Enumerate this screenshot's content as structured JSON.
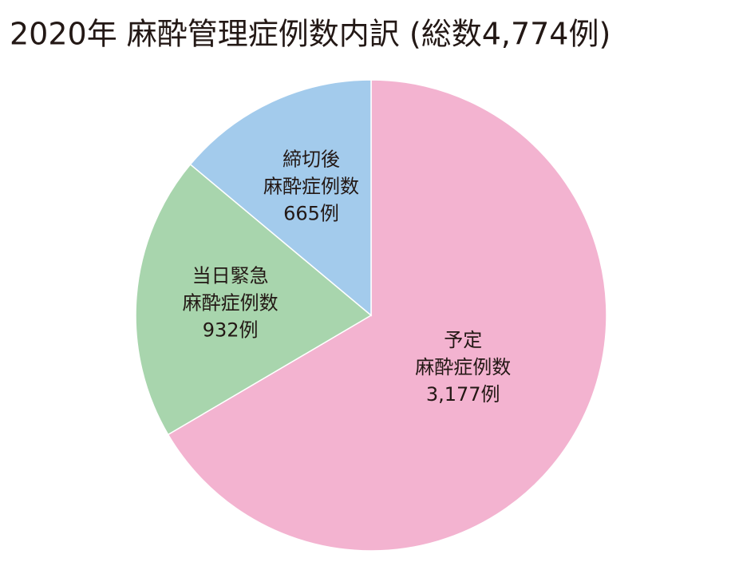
{
  "chart_data": {
    "type": "pie",
    "title": "2020年 麻酔管理症例数内訳 (総数4,774例)",
    "categories": [
      "予定",
      "当日緊急",
      "締切後"
    ],
    "category_sublabels": [
      "麻酔症例数",
      "麻酔症例数",
      "麻酔症例数"
    ],
    "values": [
      3177,
      932,
      665
    ],
    "value_labels": [
      "3,177例",
      "932例",
      "665例"
    ],
    "colors": [
      "#f3b3d0",
      "#a8d5ad",
      "#a3cbec"
    ]
  }
}
